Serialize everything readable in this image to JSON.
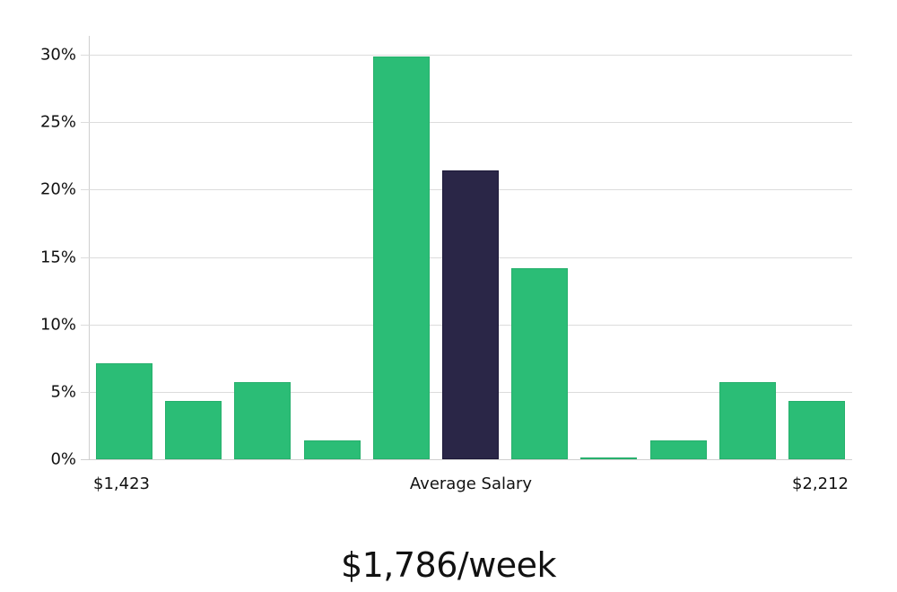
{
  "chart_data": {
    "type": "bar",
    "title": "",
    "xlabel": "Average Salary",
    "ylabel": "",
    "ylim": [
      0,
      31
    ],
    "y_ticks": [
      "0%",
      "5%",
      "10%",
      "15%",
      "20%",
      "25%",
      "30%"
    ],
    "grid": true,
    "categories": [
      "bin1",
      "bin2",
      "bin3",
      "bin4",
      "bin5",
      "bin6",
      "bin7",
      "bin8",
      "bin9",
      "bin10",
      "bin11"
    ],
    "values": [
      7.1,
      4.3,
      5.7,
      1.4,
      29.9,
      21.4,
      14.2,
      0.1,
      1.4,
      5.7,
      4.3
    ],
    "highlight_index": 5,
    "x_range_labels": {
      "min": "$1,423",
      "center": "Average Salary",
      "max": "$2,212"
    },
    "colors": {
      "default": "#2bbd76",
      "highlight": "#2a2647"
    }
  },
  "labels": {
    "y_ticks": [
      "0%",
      "5%",
      "10%",
      "15%",
      "20%",
      "25%",
      "30%"
    ],
    "x_min": "$1,423",
    "x_center": "Average Salary",
    "x_max": "$2,212",
    "footer_value": "$1,786/week"
  }
}
